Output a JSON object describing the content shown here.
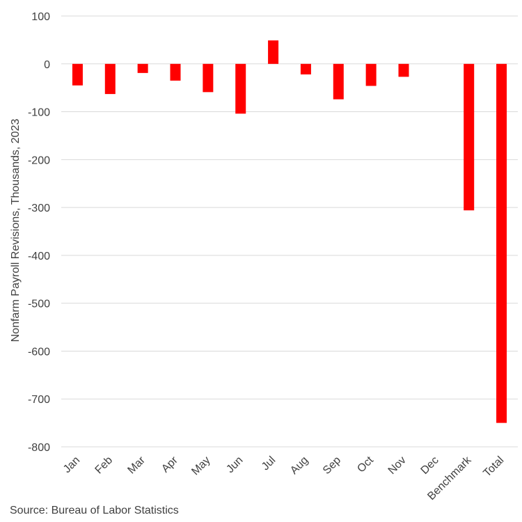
{
  "chart_data": {
    "type": "bar",
    "title": "",
    "xlabel": "",
    "ylabel": "Nonfarm Payroll Revisions, Thousands, 2023",
    "categories": [
      "Jan",
      "Feb",
      "Mar",
      "Apr",
      "May",
      "Jun",
      "Jul",
      "Aug",
      "Sep",
      "Oct",
      "Nov",
      "Dec",
      "Benchmark",
      "Total"
    ],
    "values": [
      -45,
      -63,
      -19,
      -35,
      -59,
      -104,
      49,
      -22,
      -74,
      -46,
      -27,
      0,
      -306,
      -750
    ],
    "ylim": [
      -800,
      100
    ],
    "yticks": [
      100,
      0,
      -100,
      -200,
      -300,
      -400,
      -500,
      -600,
      -700,
      -800
    ],
    "grid": true,
    "bar_color": "#ff0000",
    "grid_color": "#d9d9d9"
  },
  "source": "Source: Bureau of Labor Statistics"
}
